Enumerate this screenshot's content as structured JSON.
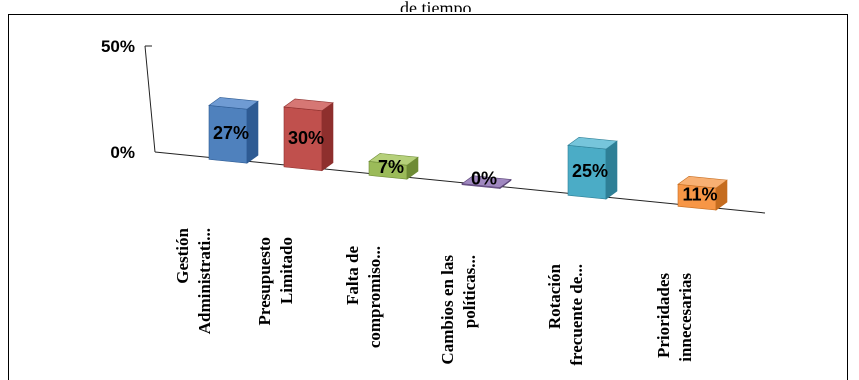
{
  "top_text": "de tiempo",
  "chart_data": {
    "type": "bar",
    "style": "3d",
    "title": "",
    "xlabel": "",
    "ylabel": "",
    "ylim": [
      0,
      50
    ],
    "yticks": [
      "0%",
      "50%"
    ],
    "grid": false,
    "legend": "none",
    "categories": [
      [
        "Gestión",
        "Administrati..."
      ],
      [
        "Presupuesto",
        "Limitado"
      ],
      [
        "Falta de",
        "compromiso..."
      ],
      [
        "Cambios en las",
        "políticas..."
      ],
      [
        "Rotación",
        "frecuente de..."
      ],
      [
        "Prioridades",
        "innecesarias"
      ]
    ],
    "values": [
      27,
      30,
      7,
      0,
      25,
      11
    ],
    "labels": [
      "27%",
      "30%",
      "7%",
      "0%",
      "25%",
      "11%"
    ],
    "colors": [
      [
        "#4f81bd",
        "#2e5b93",
        "#6f9bd3"
      ],
      [
        "#c0504d",
        "#8e2f2d",
        "#d67774"
      ],
      [
        "#9bbb59",
        "#6e8b35",
        "#b5d07a"
      ],
      [
        "#8064a2",
        "#5b4577",
        "#a088c0"
      ],
      [
        "#4bacc6",
        "#2e7f96",
        "#76c5db"
      ],
      [
        "#f79646",
        "#c56c1f",
        "#f8b073"
      ]
    ]
  }
}
